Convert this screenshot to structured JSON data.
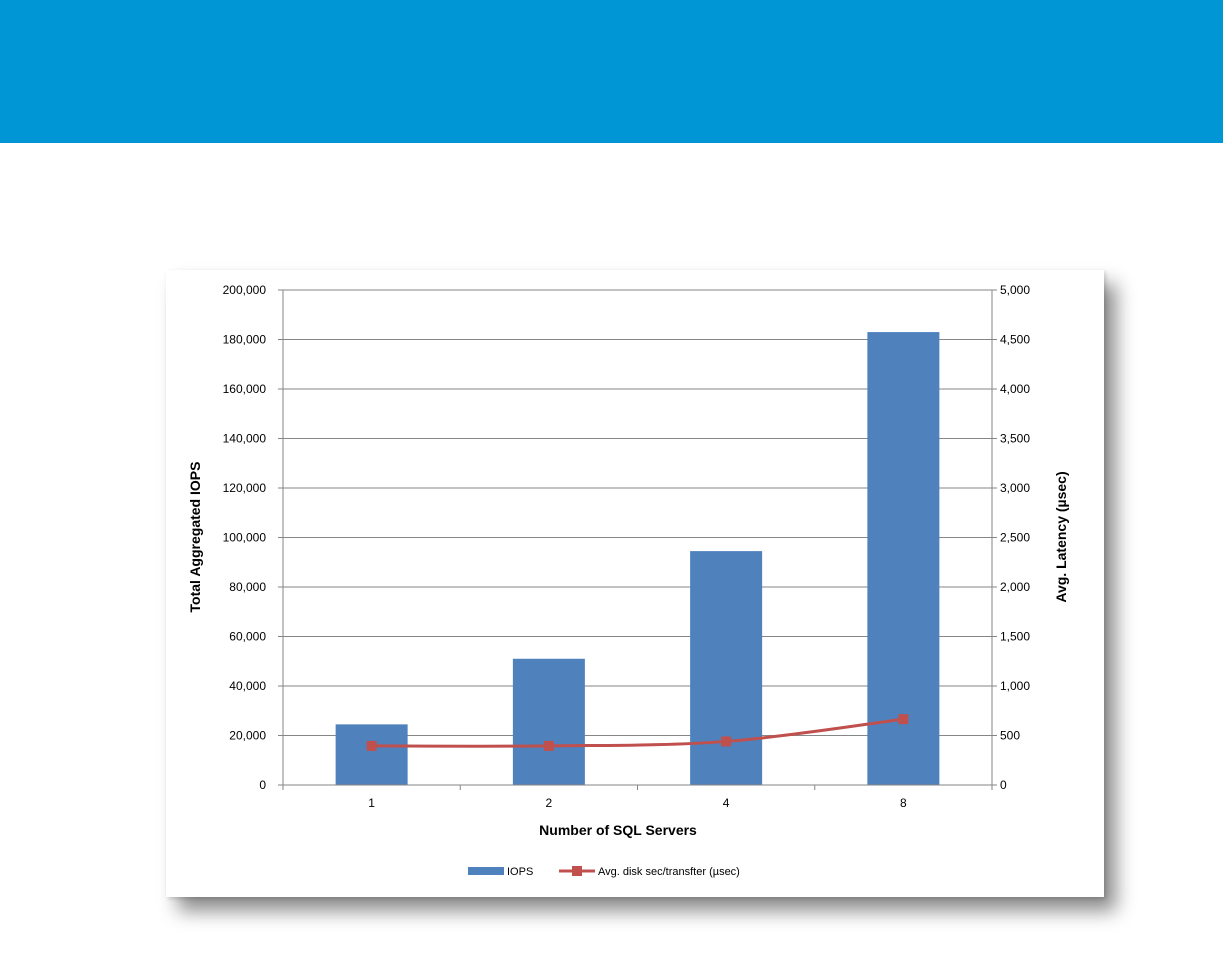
{
  "colors": {
    "banner": "#0096d6",
    "bar": "#4f81bd",
    "line": "#c0504d",
    "grid": "#868686"
  },
  "chart_data": {
    "type": "bar",
    "categories": [
      "1",
      "2",
      "4",
      "8"
    ],
    "title": "",
    "xlabel": "Number of SQL Servers",
    "ylabel": "Total Aggregated IOPS",
    "y2label": "Avg. Latency (µsec)",
    "ylim": [
      0,
      200000
    ],
    "y2lim": [
      0,
      5000
    ],
    "yticks": [
      "0",
      "20,000",
      "40,000",
      "60,000",
      "80,000",
      "100,000",
      "120,000",
      "140,000",
      "160,000",
      "180,000",
      "200,000"
    ],
    "y2ticks": [
      "0",
      "500",
      "1,000",
      "1,500",
      "2,000",
      "2,500",
      "3,000",
      "3,500",
      "4,000",
      "4,500",
      "5,000"
    ],
    "grid": true,
    "legend_position": "bottom",
    "series": [
      {
        "name": "IOPS",
        "type": "bar",
        "axis": "left",
        "values": [
          24500,
          51000,
          94500,
          183000
        ]
      },
      {
        "name": "Avg. disk sec/transfter (µsec)",
        "type": "line",
        "axis": "right",
        "values": [
          395,
          395,
          440,
          665
        ]
      }
    ]
  }
}
